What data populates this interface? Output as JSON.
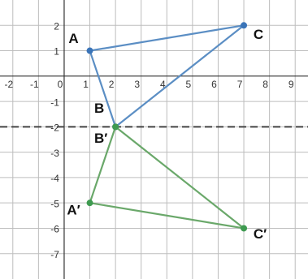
{
  "chart_data": {
    "type": "polygon",
    "xlim": [
      -2.5,
      9.5
    ],
    "ylim": [
      -8,
      3
    ],
    "xticks": [
      -2,
      -1,
      0,
      1,
      2,
      3,
      4,
      5,
      6,
      7,
      8,
      9
    ],
    "yticks": [
      -7,
      -6,
      -5,
      -4,
      -3,
      -2,
      -1,
      1,
      2
    ],
    "grid": true,
    "reference_line": -2,
    "series": [
      {
        "color": "#5b8ec4",
        "point_color": "#3a74b8",
        "labels": [
          "A",
          "B",
          "C"
        ],
        "x": [
          1,
          2,
          7
        ],
        "values": [
          1,
          -2,
          2
        ]
      },
      {
        "color": "#6aa86a",
        "point_color": "#3e9a50",
        "labels": [
          "A′",
          "B′",
          "C′"
        ],
        "x": [
          1,
          2,
          7
        ],
        "values": [
          -5,
          -2,
          -6
        ]
      }
    ]
  }
}
